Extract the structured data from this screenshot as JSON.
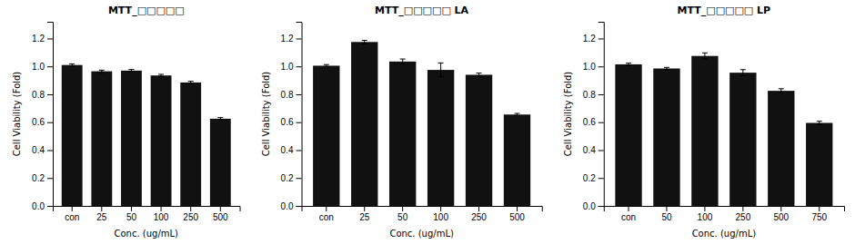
{
  "chart_data": [
    {
      "type": "bar",
      "title": "MTT_□□□□□",
      "categories": [
        "con",
        "25",
        "50",
        "100",
        "250",
        "500"
      ],
      "values": [
        1.01,
        0.965,
        0.97,
        0.935,
        0.885,
        0.625
      ],
      "errors": [
        0.008,
        0.008,
        0.008,
        0.008,
        0.008,
        0.008
      ],
      "xlabel": "Conc. (ug/mL)",
      "ylabel": "Cell Viability (Fold)",
      "ylim": [
        0.0,
        1.32
      ],
      "yticks": [
        {
          "value": 0.0,
          "label": "0.0"
        },
        0.2,
        0.4,
        0.6,
        0.8,
        {
          "value": 1.0,
          "label": "1.0"
        },
        1.2
      ],
      "color": "#111111",
      "grid": false
    },
    {
      "type": "bar",
      "title": "MTT_□□□□□ LA",
      "categories": [
        "con",
        "25",
        "50",
        "100",
        "250",
        "500"
      ],
      "values": [
        1.005,
        1.175,
        1.035,
        0.975,
        0.94,
        0.655
      ],
      "errors": [
        0.008,
        0.012,
        0.018,
        0.05,
        0.012,
        0.008
      ],
      "xlabel": "Conc. (ug/mL)",
      "ylabel": "Cell Viability (Fold)",
      "ylim": [
        0.0,
        1.32
      ],
      "yticks": [
        {
          "value": 0.0,
          "label": "0.0"
        },
        0.2,
        0.4,
        0.6,
        0.8,
        {
          "value": 1.0,
          "label": "1.0"
        },
        1.2
      ],
      "color": "#111111",
      "grid": false
    },
    {
      "type": "bar",
      "title": "MTT_□□□□□ LP",
      "categories": [
        "con",
        "50",
        "100",
        "250",
        "500",
        "750"
      ],
      "values": [
        1.015,
        0.985,
        1.075,
        0.955,
        0.825,
        0.595
      ],
      "errors": [
        0.008,
        0.008,
        0.022,
        0.022,
        0.015,
        0.012
      ],
      "xlabel": "Conc. (ug/mL)",
      "ylabel": "Cell Viability (Fold)",
      "ylim": [
        0.0,
        1.32
      ],
      "yticks": [
        {
          "value": 0.0,
          "label": "0.0"
        },
        0.2,
        0.4,
        0.6,
        0.8,
        {
          "value": 1.0,
          "label": "1.0"
        },
        1.2
      ],
      "color": "#111111",
      "grid": false
    }
  ]
}
